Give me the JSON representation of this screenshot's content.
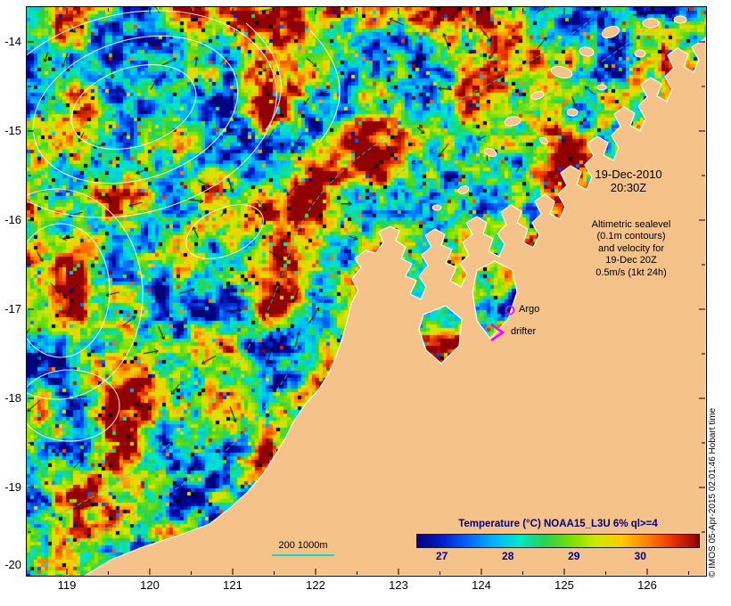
{
  "map": {
    "timestamp": {
      "line1": "19-Dec-2010",
      "line2": "20:30Z"
    },
    "altimetric_note": {
      "lines": [
        "Altimetric sealevel",
        "(0.1m contours)",
        "and velocity for",
        "19-Dec 20Z",
        "0.5m/s (1kt 24h)"
      ]
    },
    "markers": {
      "argo": "Argo",
      "drifter": "drifter"
    },
    "isobath_legend": "200 1000m",
    "colorbar": {
      "title": "Temperature (°C) NOAA15_L3U 6% ql>=4",
      "ticks": [
        "27",
        "28",
        "29",
        "30"
      ]
    },
    "copyright": "© IMOS 05-Apr-2015 02:01:46 Hobart time"
  },
  "axes": {
    "lat": [
      "-14",
      "-15",
      "-16",
      "-17",
      "-18",
      "-19",
      "-20"
    ],
    "lon": [
      "119",
      "120",
      "121",
      "122",
      "123",
      "124",
      "125",
      "126"
    ]
  },
  "colors": {
    "land": "#f5c28a",
    "coastline": "#ffffff",
    "marker_magenta": "#ff00ff",
    "isobath_cyan": "#00dcdc",
    "colorbar_title_navy": "#000080",
    "missing_data_black": "#000814",
    "sst_colormap": [
      "#000080",
      "#0020c8",
      "#0068ff",
      "#00b4ff",
      "#00e8c8",
      "#28d050",
      "#78e000",
      "#d0e800",
      "#ffc800",
      "#ff8000",
      "#e83000",
      "#900000"
    ]
  }
}
